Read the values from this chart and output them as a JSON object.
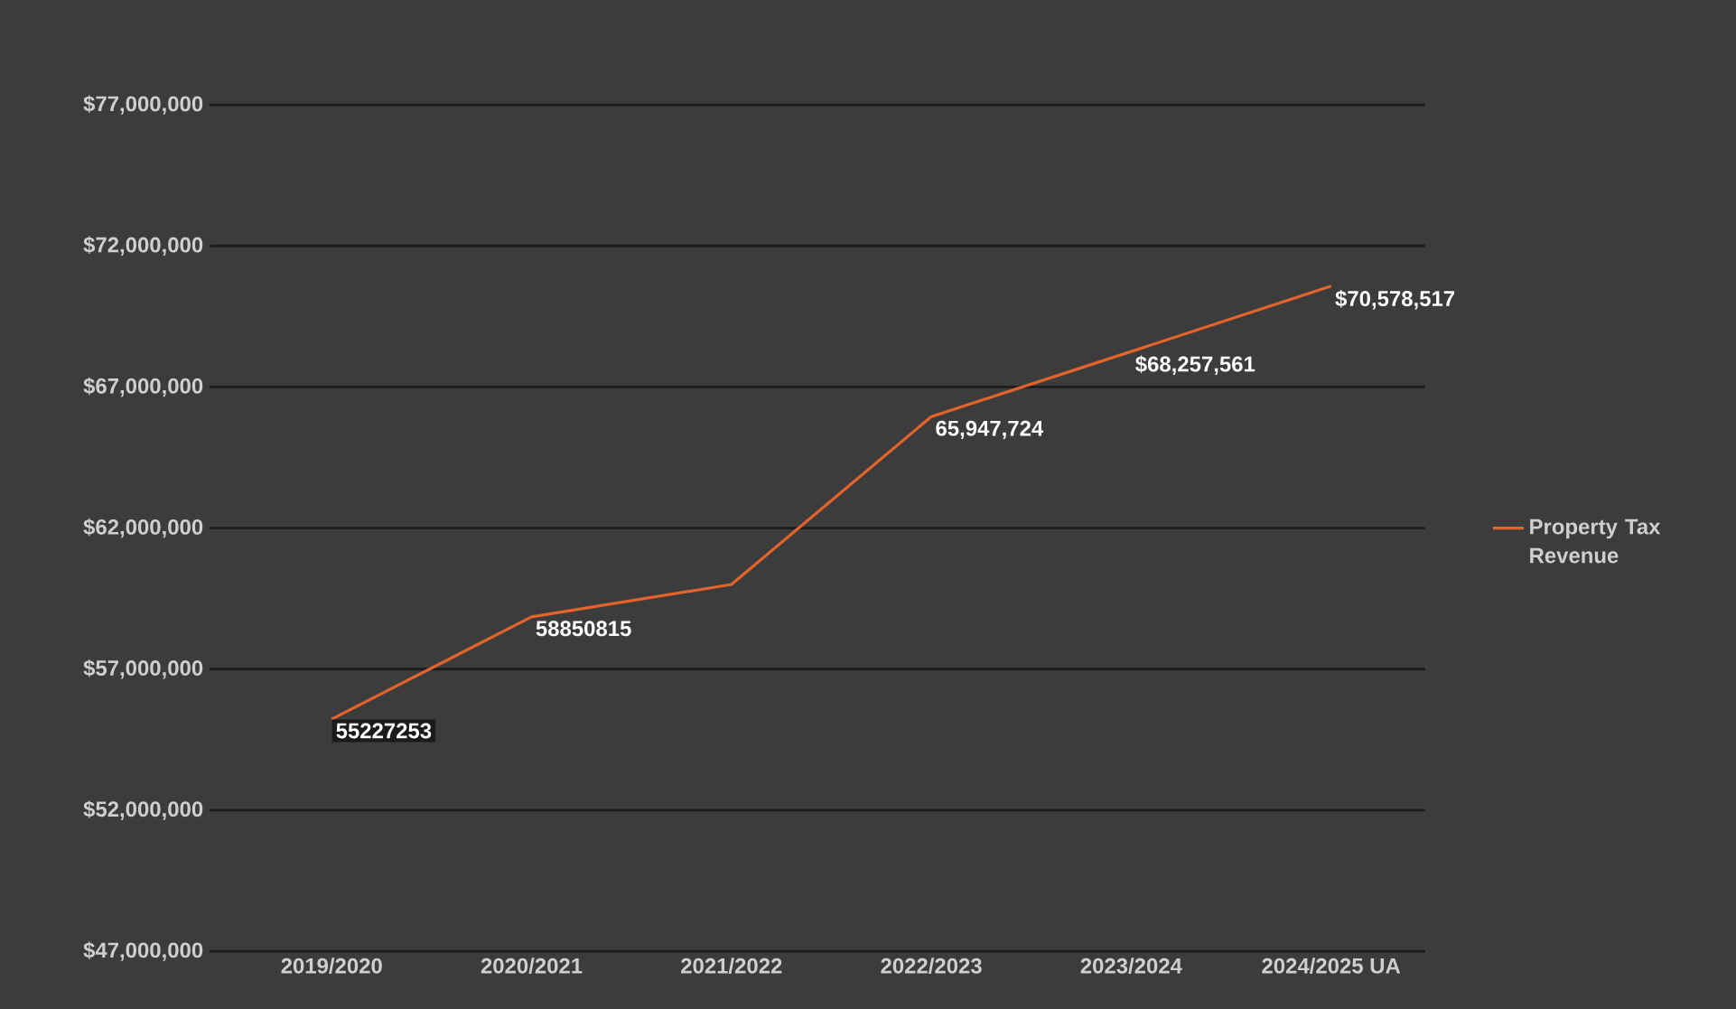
{
  "chart_data": {
    "type": "line",
    "categories": [
      "2019/2020",
      "2020/2021",
      "2021/2022",
      "2022/2023",
      "2023/2024",
      "2024/2025 UA"
    ],
    "series": [
      {
        "name": "Property Tax Revenue",
        "color": "#e2642c",
        "values": [
          55227253,
          58850815,
          60000000,
          65947724,
          68257561,
          70578517
        ],
        "value_labels": [
          "55227253",
          "58850815",
          null,
          "65,947,724",
          "$68,257,561",
          "$70,578,517"
        ]
      }
    ],
    "ylim": [
      47000000,
      77000000
    ],
    "yticks": [
      {
        "value": 47000000,
        "label": "$47,000,000"
      },
      {
        "value": 52000000,
        "label": "$52,000,000"
      },
      {
        "value": 57000000,
        "label": "$57,000,000"
      },
      {
        "value": 62000000,
        "label": "$62,000,000"
      },
      {
        "value": 67000000,
        "label": "$67,000,000"
      },
      {
        "value": 72000000,
        "label": "$72,000,000"
      },
      {
        "value": 77000000,
        "label": "$77,000,000"
      }
    ],
    "grid": "y",
    "legend": "right"
  }
}
